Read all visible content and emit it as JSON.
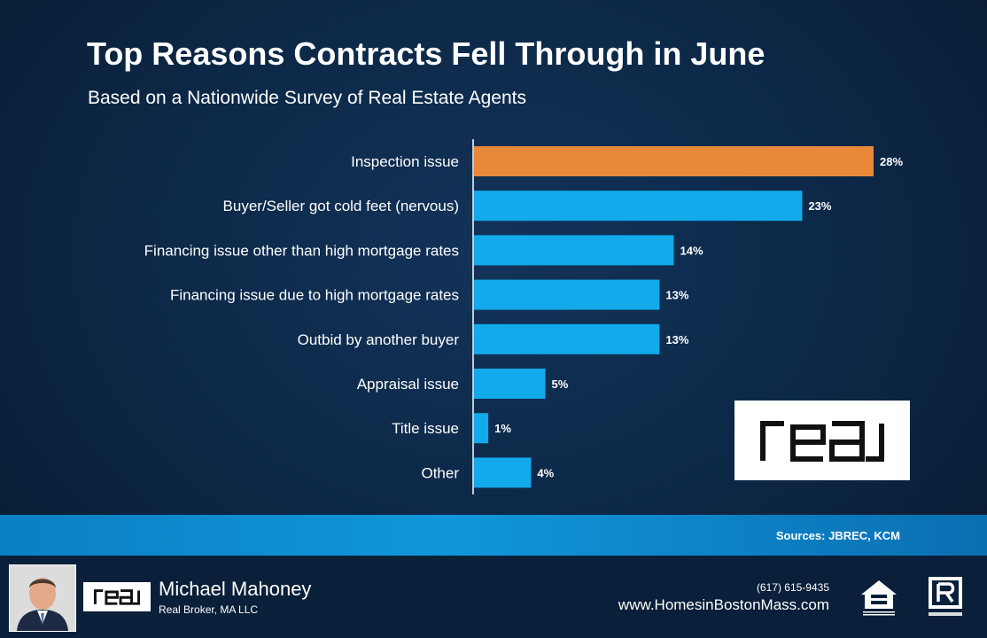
{
  "header": {
    "title": "Top Reasons Contracts Fell Through in June",
    "subtitle": "Based on a Nationwide Survey of Real Estate Agents"
  },
  "chart_data": {
    "type": "bar",
    "orientation": "horizontal",
    "categories": [
      "Inspection issue",
      "Buyer/Seller got cold feet (nervous)",
      "Financing issue other than high mortgage rates",
      "Financing issue due to high mortgage rates",
      "Outbid by another buyer",
      "Appraisal issue",
      "Title issue",
      "Other"
    ],
    "values": [
      28,
      23,
      14,
      13,
      13,
      5,
      1,
      4
    ],
    "value_labels": [
      "28%",
      "23%",
      "14%",
      "13%",
      "13%",
      "5%",
      "1%",
      "4%"
    ],
    "unit": "%",
    "highlight_index": 0,
    "colors": {
      "highlight": "#e8893a",
      "bar": "#12aaeb"
    },
    "xlim": [
      0,
      28
    ],
    "grid": false,
    "title": "Top Reasons Contracts Fell Through in June",
    "subtitle": "Based on a Nationwide Survey of Real Estate Agents"
  },
  "logo": {
    "brand": "real",
    "icon": "real-logo-icon"
  },
  "sources": "Sources: JBREC, KCM",
  "footer": {
    "agent_name": "Michael Mahoney",
    "agent_company": "Real Broker, MA LLC",
    "phone": "(617) 615-9435",
    "website": "www.HomesinBostonMass.com",
    "badges": [
      "equal-housing-opportunity-icon",
      "realtor-icon"
    ]
  }
}
